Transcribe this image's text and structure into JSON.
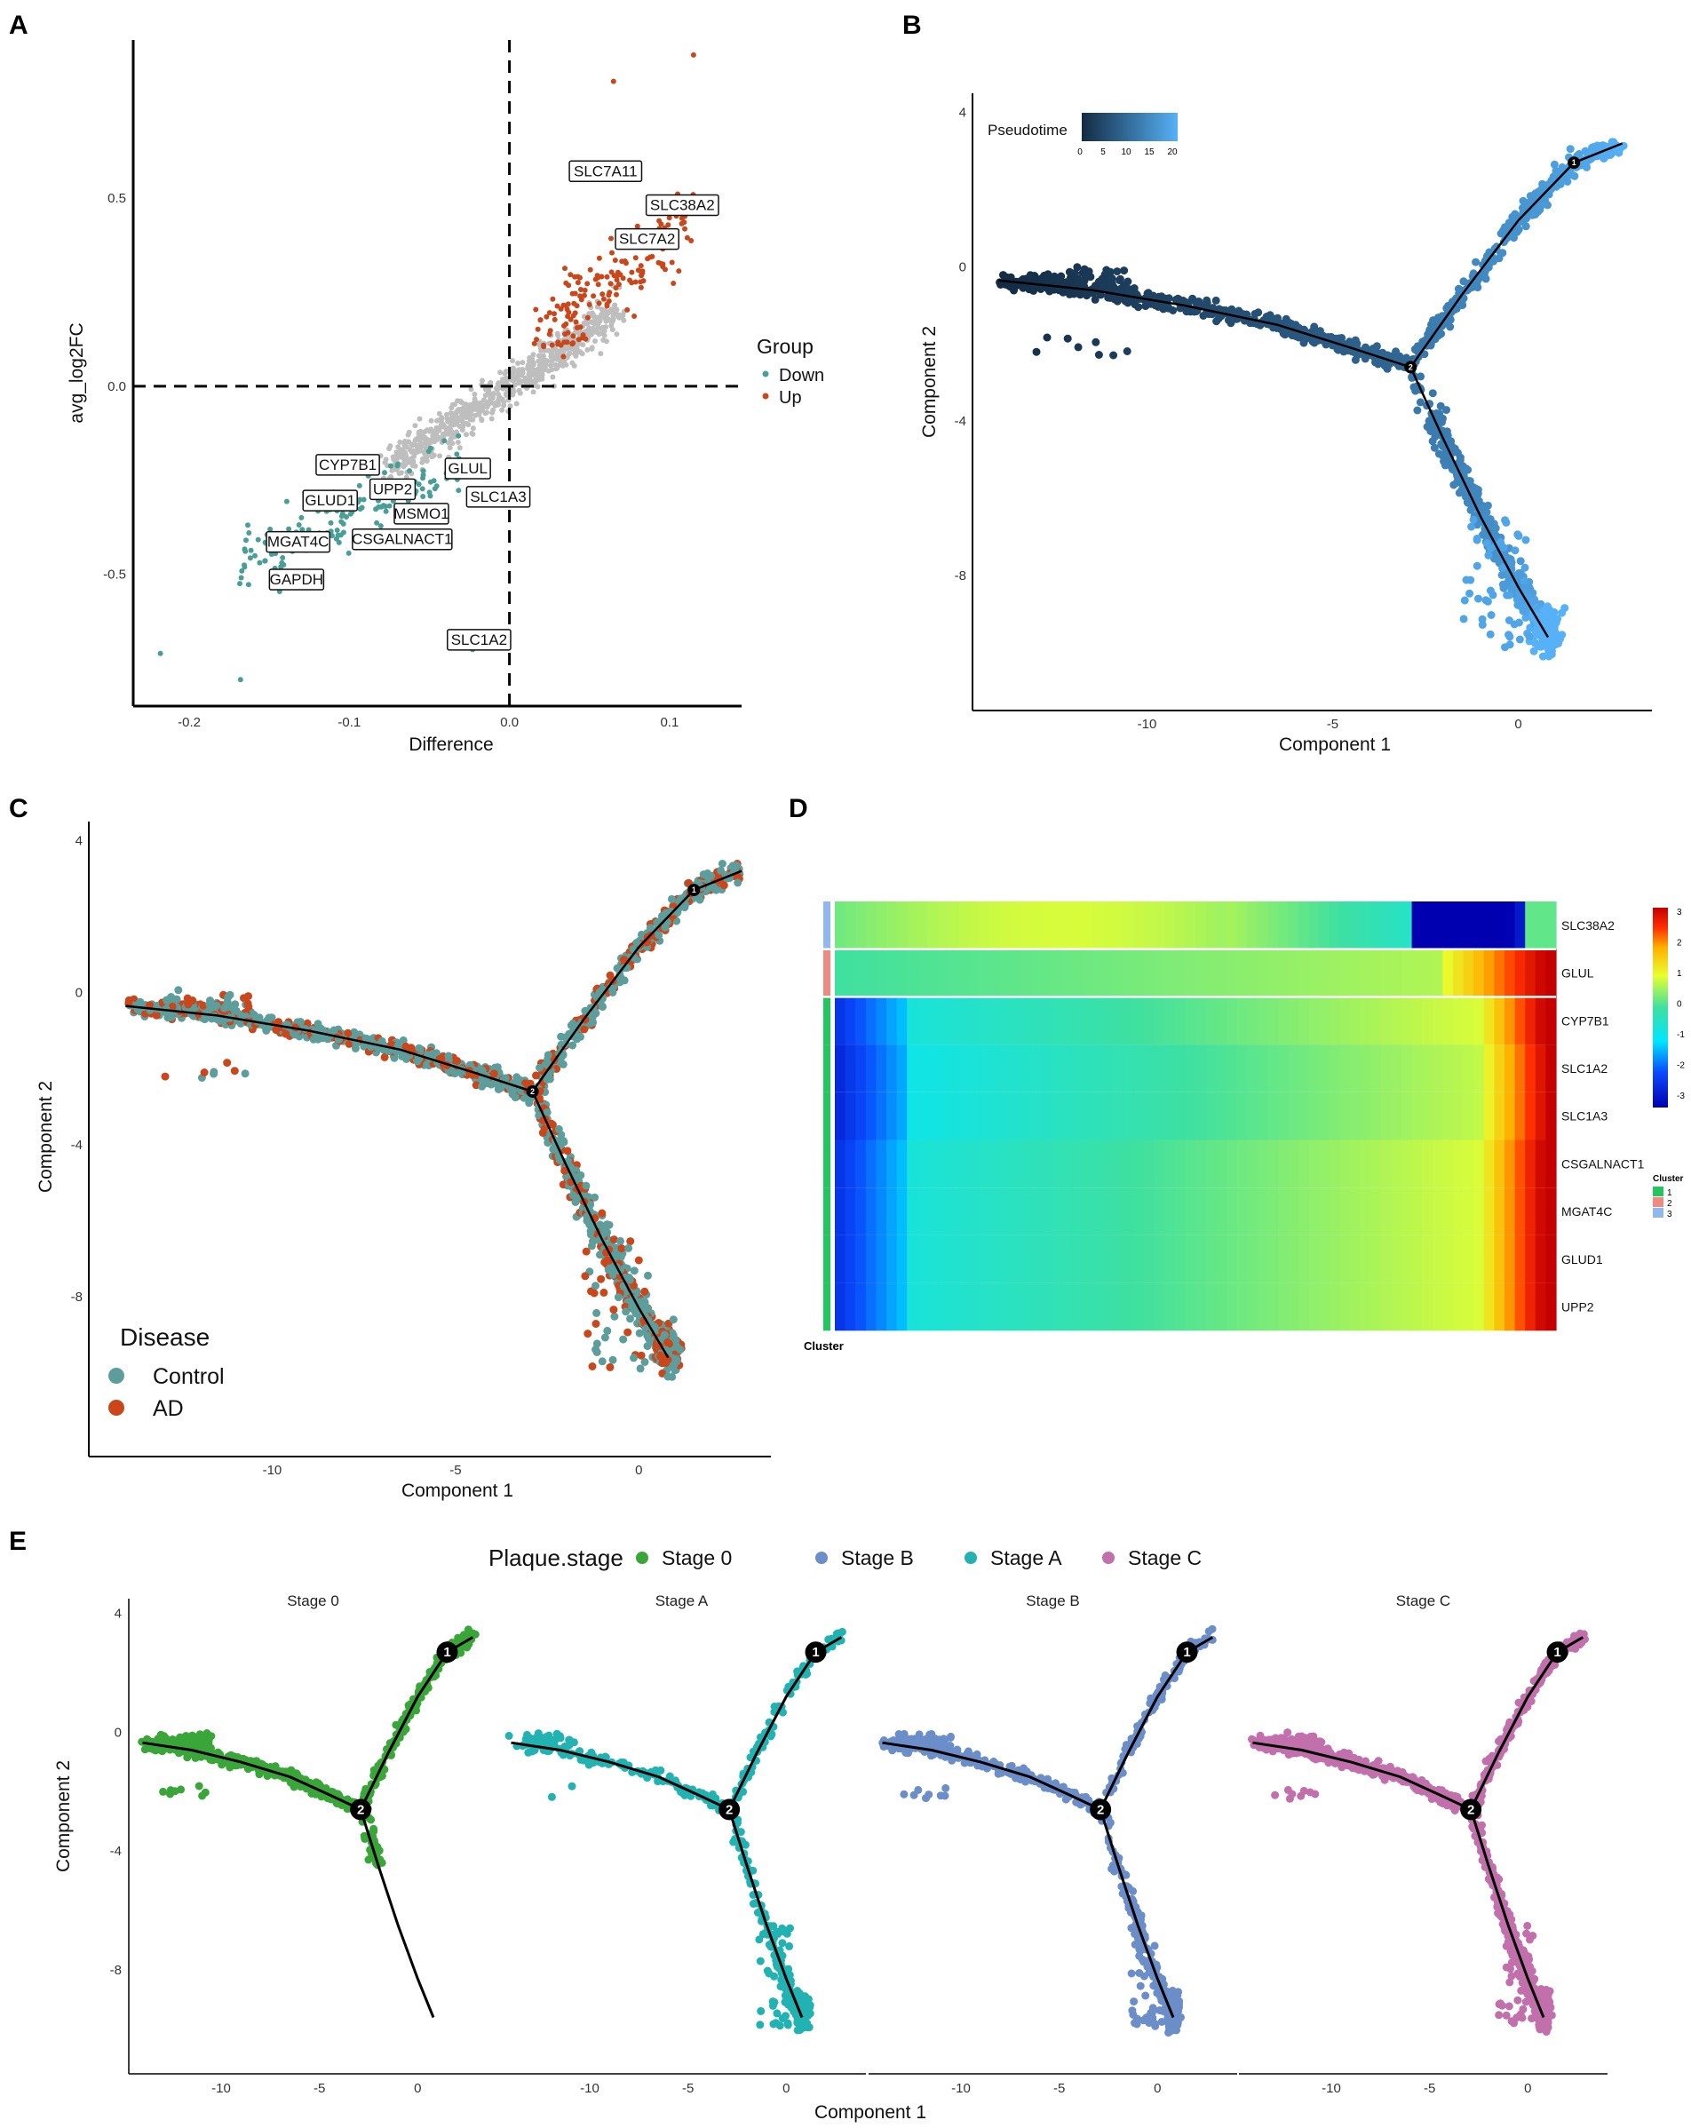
{
  "figure": {
    "panels": [
      "A",
      "B",
      "C",
      "D",
      "E"
    ],
    "colors": {
      "up": "#c9471b",
      "down": "#4a9e98",
      "neutral": "#bebebe",
      "control": "#5d9e9d",
      "ad": "#c9471b",
      "stage0": "#3aa63a",
      "stageA": "#22b2b2",
      "stageB": "#6b8ec9",
      "stageC": "#c170ac",
      "cluster1": "#22c55e",
      "cluster2": "#f08a80",
      "cluster3": "#8fb8f0"
    }
  },
  "chart_data": [
    {
      "panel": "A",
      "type": "scatter",
      "xlabel": "Difference",
      "ylabel": "avg_log2FC",
      "xticks": [
        "-0.2",
        "-0.1",
        "0.0",
        "0.1"
      ],
      "yticks": [
        "-0.5",
        "0.0",
        "0.5"
      ],
      "xlim": [
        -0.235,
        0.145
      ],
      "ylim": [
        -0.85,
        0.92
      ],
      "legend_title": "Group",
      "legend": [
        "Down",
        "Up"
      ],
      "labels": [
        {
          "gene": "SLC7A11",
          "x": 0.06,
          "y": 0.57
        },
        {
          "gene": "SLC38A2",
          "x": 0.108,
          "y": 0.48
        },
        {
          "gene": "SLC7A2",
          "x": 0.086,
          "y": 0.39
        },
        {
          "gene": "CYP7B1",
          "x": -0.101,
          "y": -0.21
        },
        {
          "gene": "GLUL",
          "x": -0.026,
          "y": -0.22
        },
        {
          "gene": "UPP2",
          "x": -0.073,
          "y": -0.275
        },
        {
          "gene": "SLC1A3",
          "x": -0.007,
          "y": -0.295
        },
        {
          "gene": "GLUD1",
          "x": -0.112,
          "y": -0.305
        },
        {
          "gene": "MSMO1",
          "x": -0.055,
          "y": -0.34
        },
        {
          "gene": "MGAT4C",
          "x": -0.132,
          "y": -0.415
        },
        {
          "gene": "CSGALNACT1",
          "x": -0.067,
          "y": -0.408
        },
        {
          "gene": "GAPDH",
          "x": -0.133,
          "y": -0.515
        },
        {
          "gene": "SLC1A2",
          "x": -0.019,
          "y": -0.675
        }
      ]
    },
    {
      "panel": "B",
      "type": "scatter",
      "xlabel": "Component 1",
      "ylabel": "Component 2",
      "xticks": [
        "-10",
        "-5",
        "0"
      ],
      "yticks": [
        "4",
        "0",
        "-4",
        "-8"
      ],
      "xlim": [
        -14.7,
        3.6
      ],
      "ylim": [
        -11.5,
        4.5
      ],
      "legend_title": "Pseudotime",
      "legend_ticks": [
        "0",
        "5",
        "10",
        "15",
        "20"
      ],
      "nodes": [
        "1",
        "2"
      ]
    },
    {
      "panel": "C",
      "type": "scatter",
      "xlabel": "Component 1",
      "ylabel": "Component 2",
      "xticks": [
        "-10",
        "-5",
        "0"
      ],
      "yticks": [
        "4",
        "0",
        "-4",
        "-8"
      ],
      "xlim": [
        -15,
        3.6
      ],
      "ylim": [
        -12.2,
        4.5
      ],
      "legend_title": "Disease",
      "legend": [
        "Control",
        "AD"
      ],
      "nodes": [
        "1",
        "2"
      ]
    },
    {
      "panel": "D",
      "type": "heatmap",
      "genes": [
        "SLC38A2",
        "GLUL",
        "CYP7B1",
        "SLC1A2",
        "SLC1A3",
        "CSGALNACT1",
        "MGAT4C",
        "GLUD1",
        "UPP2"
      ],
      "clusters": [
        "3",
        "2",
        "1",
        "1",
        "1",
        "1",
        "1",
        "1",
        "1"
      ],
      "colorbar_ticks": [
        "3",
        "2",
        "1",
        "0",
        "-1",
        "-2",
        "-3"
      ],
      "cluster_legend_title": "Cluster",
      "cluster_legend": [
        "1",
        "2",
        "3"
      ],
      "cluster_axis_label": "Cluster"
    },
    {
      "panel": "E",
      "type": "scatter",
      "legend_title": "Plaque.stage",
      "legend": [
        "Stage 0",
        "Stage B",
        "Stage A",
        "Stage C"
      ],
      "facets": [
        "Stage 0",
        "Stage A",
        "Stage B",
        "Stage C"
      ],
      "xlabel": "Component 1",
      "ylabel": "Component 2",
      "xticks": [
        "-10",
        "-5",
        "0"
      ],
      "yticks": [
        "4",
        "0",
        "-4",
        "-8"
      ],
      "xlim": [
        -14.7,
        3.6
      ],
      "ylim": [
        -11.5,
        4.5
      ],
      "nodes": [
        "1",
        "2"
      ]
    }
  ]
}
